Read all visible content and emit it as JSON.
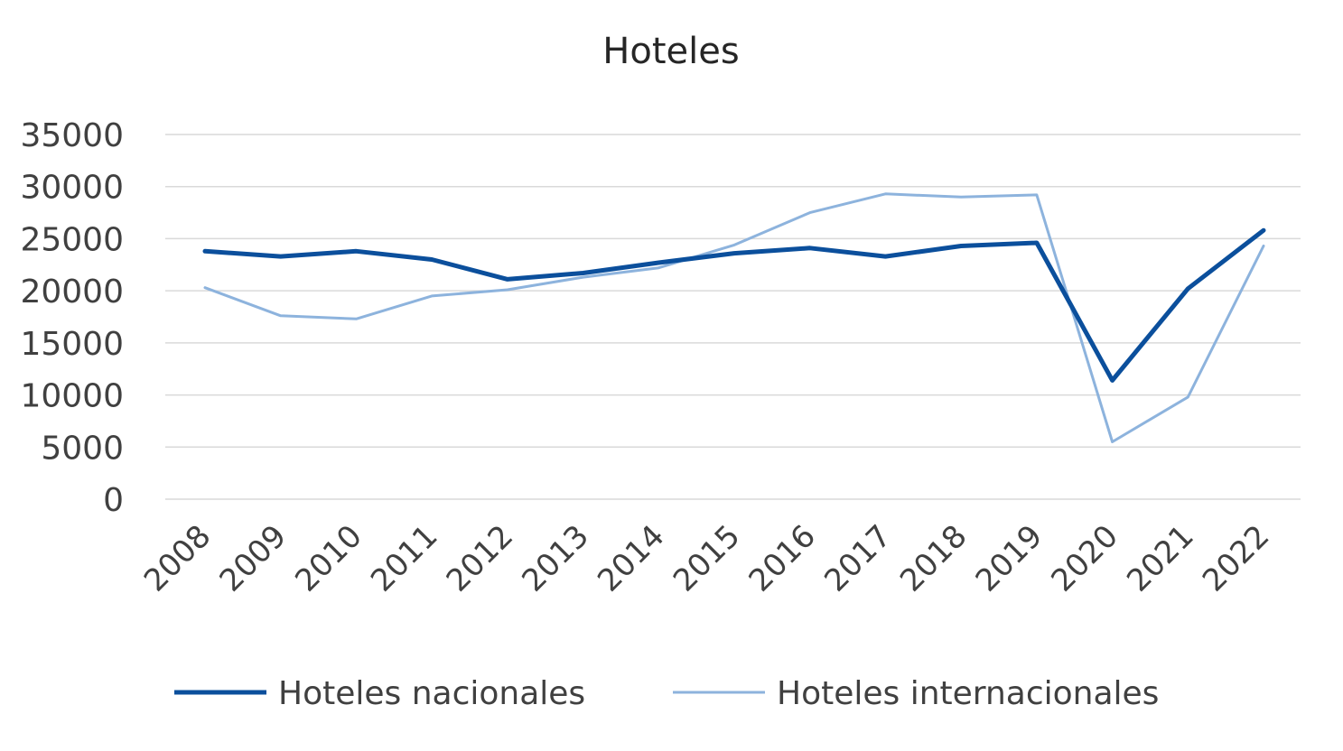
{
  "chart_data": {
    "type": "line",
    "title": "Hoteles",
    "xlabel": "",
    "ylabel": "",
    "categories": [
      "2008",
      "2009",
      "2010",
      "2011",
      "2012",
      "2013",
      "2014",
      "2015",
      "2016",
      "2017",
      "2018",
      "2019",
      "2020",
      "2021",
      "2022"
    ],
    "series": [
      {
        "name": "Hoteles nacionales",
        "color": "#0b4f9c",
        "values": [
          23800,
          23300,
          23800,
          23000,
          21100,
          21700,
          22700,
          23600,
          24100,
          23300,
          24300,
          24600,
          11400,
          20200,
          25800
        ]
      },
      {
        "name": "Hoteles internacionales",
        "color": "#8db3dd",
        "values": [
          20300,
          17600,
          17300,
          19500,
          20100,
          21300,
          22200,
          24400,
          27500,
          29300,
          29000,
          29200,
          5500,
          9800,
          24300
        ]
      }
    ],
    "yticks": [
      "0",
      "5000",
      "10000",
      "15000",
      "20000",
      "25000",
      "30000",
      "35000"
    ],
    "ylim": [
      0,
      35000
    ],
    "grid": true,
    "legend_position": "bottom"
  }
}
